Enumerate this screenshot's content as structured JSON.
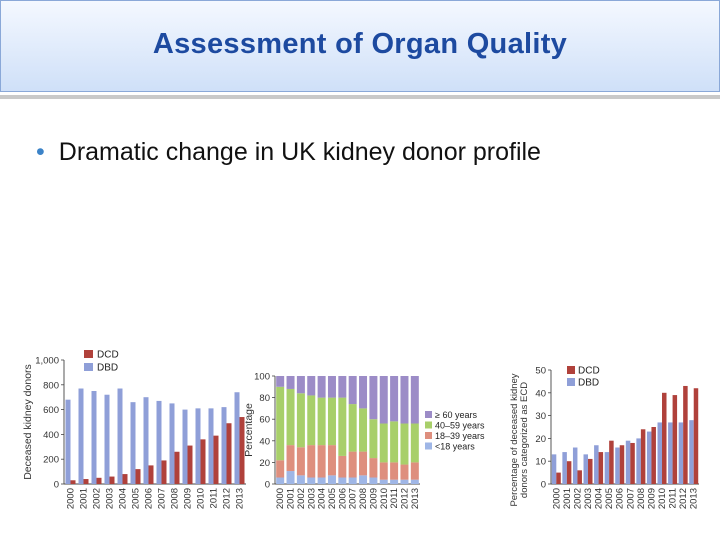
{
  "slide": {
    "title": "Assessment of Organ Quality",
    "bullet": "Dramatic change in UK kidney donor profile"
  },
  "colors": {
    "dcd": "#b0413b",
    "dbd": "#8f9fd8",
    "age60": "#9c8cc7",
    "age40": "#a8cf6a",
    "age18": "#de8f7e",
    "age0": "#9fb6e6"
  },
  "chart_data": [
    {
      "type": "bar",
      "title": "",
      "ylabel": "Deceased kidney donors",
      "yticks": [
        "0",
        "200",
        "400",
        "600",
        "800",
        "1,000"
      ],
      "ylim": [
        0,
        1000
      ],
      "categories": [
        "2000",
        "2001",
        "2002",
        "2003",
        "2004",
        "2005",
        "2006",
        "2007",
        "2008",
        "2009",
        "2010",
        "2011",
        "2012",
        "2013"
      ],
      "legend": [
        "DCD",
        "DBD"
      ],
      "series": [
        {
          "name": "DCD",
          "values": [
            30,
            40,
            50,
            60,
            80,
            120,
            150,
            190,
            260,
            310,
            360,
            390,
            490,
            540
          ]
        },
        {
          "name": "DBD",
          "values": [
            680,
            770,
            750,
            720,
            770,
            660,
            700,
            670,
            650,
            600,
            610,
            610,
            620,
            740
          ]
        }
      ]
    },
    {
      "type": "bar",
      "stacked": true,
      "title": "",
      "ylabel": "Percentage",
      "yticks": [
        "0",
        "20",
        "40",
        "60",
        "80",
        "100"
      ],
      "ylim": [
        0,
        100
      ],
      "categories": [
        "2000",
        "2001",
        "2002",
        "2003",
        "2004",
        "2005",
        "2006",
        "2007",
        "2008",
        "2009",
        "2010",
        "2011",
        "2012",
        "2013"
      ],
      "legend": [
        "≥ 60 years",
        "40–59 years",
        "18–39 years",
        "<18 years"
      ],
      "series": [
        {
          "name": "<18 years",
          "values": [
            6,
            12,
            8,
            6,
            6,
            8,
            6,
            6,
            8,
            6,
            4,
            4,
            4,
            4
          ]
        },
        {
          "name": "18–39 years",
          "values": [
            16,
            24,
            26,
            30,
            30,
            28,
            20,
            24,
            22,
            18,
            16,
            16,
            14,
            16
          ]
        },
        {
          "name": "40–59 years",
          "values": [
            68,
            52,
            50,
            46,
            44,
            44,
            54,
            44,
            40,
            36,
            36,
            38,
            38,
            36
          ]
        },
        {
          "name": "≥ 60 years",
          "values": [
            10,
            12,
            16,
            18,
            20,
            20,
            20,
            26,
            30,
            40,
            44,
            42,
            44,
            44
          ]
        }
      ]
    },
    {
      "type": "bar",
      "title": "",
      "ylabel": "Percentage of deceased kidney donors categorized as ECD",
      "yticks": [
        "0",
        "10",
        "20",
        "30",
        "40",
        "50"
      ],
      "ylim": [
        0,
        50
      ],
      "categories": [
        "2000",
        "2001",
        "2002",
        "2003",
        "2004",
        "2005",
        "2006",
        "2007",
        "2008",
        "2009",
        "2010",
        "2011",
        "2012",
        "2013"
      ],
      "legend": [
        "DCD",
        "DBD"
      ],
      "series": [
        {
          "name": "DCD",
          "values": [
            5,
            10,
            6,
            11,
            14,
            19,
            17,
            18,
            24,
            25,
            40,
            39,
            43,
            42
          ]
        },
        {
          "name": "DBD",
          "values": [
            13,
            14,
            16,
            13,
            17,
            14,
            16,
            19,
            20,
            23,
            27,
            27,
            27,
            28
          ]
        }
      ]
    }
  ]
}
